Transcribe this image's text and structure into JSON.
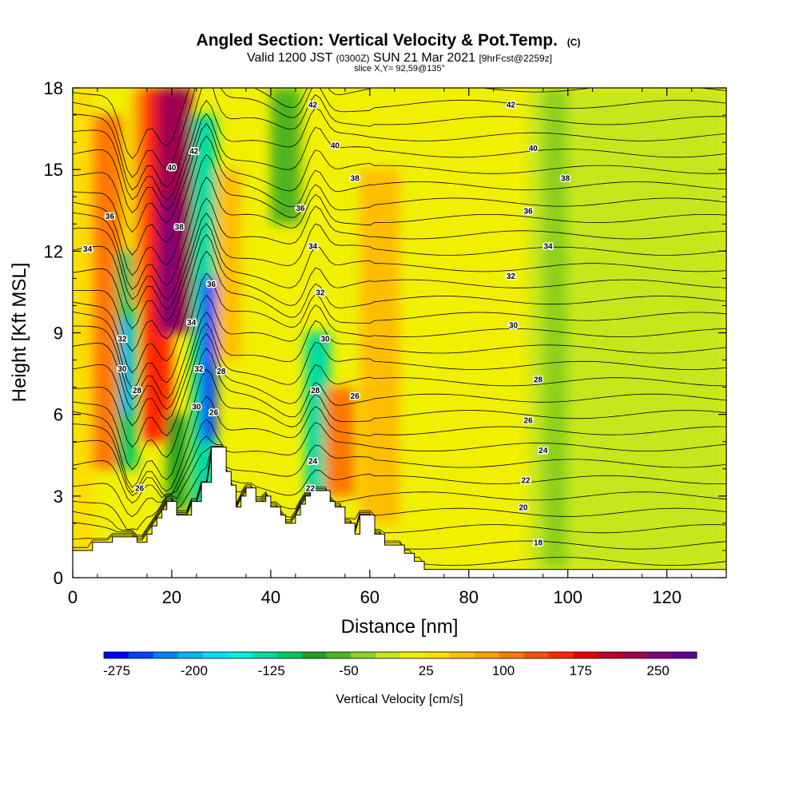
{
  "header": {
    "title": "Angled Section: Vertical Velocity & Pot.Temp.",
    "copyright": "(C)",
    "valid_prefix": "Valid 1200 JST",
    "valid_utc": "(0300Z)",
    "valid_date": "SUN 21 Mar 2021",
    "forecast": "[9hrFcst@2259z]",
    "slice": "slice X,Y= 92,59@135°"
  },
  "chart_data": {
    "type": "heatmap",
    "xlabel": "Distance [nm]",
    "ylabel": "Height [Kft MSL]",
    "xlim": [
      0,
      132
    ],
    "ylim": [
      0,
      18
    ],
    "x_ticks": [
      0,
      20,
      40,
      60,
      80,
      100,
      120
    ],
    "y_ticks": [
      0,
      3,
      6,
      9,
      12,
      15,
      18
    ],
    "colorbar": {
      "label": "Vertical Velocity [cm/s]",
      "tick_labels": [
        "-275",
        "-200",
        "-125",
        "-50",
        "25",
        "100",
        "175",
        "250"
      ],
      "tick_values": [
        -275,
        -200,
        -125,
        -50,
        25,
        100,
        175,
        250
      ],
      "range": [
        -287.5,
        287.5
      ],
      "colors": [
        "#0000ff",
        "#0040ff",
        "#0080ff",
        "#00b4ff",
        "#00dcff",
        "#00f0dc",
        "#00dca0",
        "#00c864",
        "#20a020",
        "#50b41e",
        "#8cd21e",
        "#c8e61e",
        "#f0f000",
        "#ffdc00",
        "#ffbe00",
        "#ffa000",
        "#ff7800",
        "#ff5000",
        "#ff2800",
        "#e60000",
        "#c00028",
        "#a00050",
        "#800078",
        "#600096"
      ]
    },
    "vertical_velocity_cells": [
      {
        "x0": 0,
        "x1": 4,
        "y0": 0,
        "y1": 18,
        "value": 40
      },
      {
        "x0": 4,
        "x1": 10,
        "y0": 4,
        "y1": 17,
        "value": 110
      },
      {
        "x0": 9,
        "x1": 13,
        "y0": 4,
        "y1": 12,
        "value": -100
      },
      {
        "x0": 10,
        "x1": 12,
        "y0": 6,
        "y1": 9.5,
        "value": -210
      },
      {
        "x0": 12,
        "x1": 16,
        "y0": 10,
        "y1": 18,
        "value": 90
      },
      {
        "x0": 14,
        "x1": 20,
        "y0": 5,
        "y1": 18,
        "value": 160
      },
      {
        "x0": 17,
        "x1": 24,
        "y0": 9,
        "y1": 18,
        "value": 220
      },
      {
        "x0": 18,
        "x1": 21,
        "y0": 9,
        "y1": 14,
        "value": 260
      },
      {
        "x0": 19,
        "x1": 23,
        "y0": 2.5,
        "y1": 6,
        "value": -90
      },
      {
        "x0": 24,
        "x1": 29,
        "y0": 2.5,
        "y1": 17,
        "value": -130
      },
      {
        "x0": 26,
        "x1": 29,
        "y0": 5,
        "y1": 11,
        "value": -260
      },
      {
        "x0": 29,
        "x1": 34,
        "y0": 8,
        "y1": 15,
        "value": 60
      },
      {
        "x0": 40,
        "x1": 46,
        "y0": 13,
        "y1": 18,
        "value": -60
      },
      {
        "x0": 47,
        "x1": 52,
        "y0": 3,
        "y1": 9,
        "value": -140
      },
      {
        "x0": 51,
        "x1": 57,
        "y0": 3,
        "y1": 7,
        "value": 110
      },
      {
        "x0": 58,
        "x1": 66,
        "y0": 2,
        "y1": 15,
        "value": 60
      },
      {
        "x0": 92,
        "x1": 132,
        "y0": 0.3,
        "y1": 18,
        "value": -20
      },
      {
        "x0": 95,
        "x1": 100,
        "y0": 0.3,
        "y1": 18,
        "value": -45
      }
    ],
    "theta_contours": {
      "levels": [
        18,
        20,
        22,
        24,
        26,
        28,
        30,
        32,
        34,
        36,
        38,
        40,
        42
      ],
      "labels": [
        {
          "text": "42",
          "x": 48.5,
          "y": 17.4
        },
        {
          "text": "42",
          "x": 88.5,
          "y": 17.4
        },
        {
          "text": "42",
          "x": 24.5,
          "y": 15.7
        },
        {
          "text": "40",
          "x": 20.0,
          "y": 15.1
        },
        {
          "text": "40",
          "x": 53.0,
          "y": 15.9
        },
        {
          "text": "40",
          "x": 93.0,
          "y": 15.8
        },
        {
          "text": "38",
          "x": 57.0,
          "y": 14.7
        },
        {
          "text": "38",
          "x": 99.5,
          "y": 14.7
        },
        {
          "text": "38",
          "x": 21.5,
          "y": 12.9
        },
        {
          "text": "36",
          "x": 7.5,
          "y": 13.3
        },
        {
          "text": "36",
          "x": 46.0,
          "y": 13.6
        },
        {
          "text": "36",
          "x": 92.0,
          "y": 13.5
        },
        {
          "text": "36",
          "x": 28.0,
          "y": 10.8
        },
        {
          "text": "34",
          "x": 3.0,
          "y": 12.1
        },
        {
          "text": "34",
          "x": 48.5,
          "y": 12.2
        },
        {
          "text": "34",
          "x": 96.0,
          "y": 12.2
        },
        {
          "text": "34",
          "x": 24.0,
          "y": 9.4
        },
        {
          "text": "32",
          "x": 50.0,
          "y": 10.5
        },
        {
          "text": "32",
          "x": 88.5,
          "y": 11.1
        },
        {
          "text": "32",
          "x": 10.0,
          "y": 8.8
        },
        {
          "text": "32",
          "x": 25.5,
          "y": 7.7
        },
        {
          "text": "30",
          "x": 51.0,
          "y": 8.8
        },
        {
          "text": "30",
          "x": 89.0,
          "y": 9.3
        },
        {
          "text": "30",
          "x": 10.0,
          "y": 7.7
        },
        {
          "text": "30",
          "x": 25.0,
          "y": 6.3
        },
        {
          "text": "28",
          "x": 30.0,
          "y": 7.6
        },
        {
          "text": "28",
          "x": 13.0,
          "y": 6.9
        },
        {
          "text": "28",
          "x": 49.0,
          "y": 6.9
        },
        {
          "text": "28",
          "x": 94.0,
          "y": 7.3
        },
        {
          "text": "26",
          "x": 57.0,
          "y": 6.7
        },
        {
          "text": "26",
          "x": 92.0,
          "y": 5.8
        },
        {
          "text": "26",
          "x": 13.5,
          "y": 3.3
        },
        {
          "text": "26",
          "x": 28.5,
          "y": 6.1
        },
        {
          "text": "24",
          "x": 48.5,
          "y": 4.3
        },
        {
          "text": "24",
          "x": 95.0,
          "y": 4.7
        },
        {
          "text": "22",
          "x": 48.0,
          "y": 3.3
        },
        {
          "text": "22",
          "x": 91.5,
          "y": 3.6
        },
        {
          "text": "20",
          "x": 91.0,
          "y": 2.6
        },
        {
          "text": "18",
          "x": 94.0,
          "y": 1.3
        }
      ]
    },
    "terrain_profile": [
      [
        0,
        1.0
      ],
      [
        4,
        1.0
      ],
      [
        4,
        1.3
      ],
      [
        8,
        1.3
      ],
      [
        8,
        1.5
      ],
      [
        13,
        1.5
      ],
      [
        13,
        1.3
      ],
      [
        15,
        1.3
      ],
      [
        15,
        1.6
      ],
      [
        16,
        1.6
      ],
      [
        16,
        1.9
      ],
      [
        17,
        1.9
      ],
      [
        17,
        2.2
      ],
      [
        18,
        2.2
      ],
      [
        18,
        2.5
      ],
      [
        19,
        2.5
      ],
      [
        19,
        2.8
      ],
      [
        21,
        2.8
      ],
      [
        21,
        2.3
      ],
      [
        24,
        2.3
      ],
      [
        24,
        2.8
      ],
      [
        26,
        2.8
      ],
      [
        26,
        3.5
      ],
      [
        28,
        3.5
      ],
      [
        28,
        4.8
      ],
      [
        31,
        4.8
      ],
      [
        31,
        3.9
      ],
      [
        32,
        3.9
      ],
      [
        32,
        3.4
      ],
      [
        33,
        3.4
      ],
      [
        33,
        2.6
      ],
      [
        34,
        2.6
      ],
      [
        34,
        3.0
      ],
      [
        35,
        3.0
      ],
      [
        35,
        3.3
      ],
      [
        37,
        3.3
      ],
      [
        37,
        2.8
      ],
      [
        39,
        2.8
      ],
      [
        39,
        3.0
      ],
      [
        40,
        3.0
      ],
      [
        40,
        2.6
      ],
      [
        42,
        2.6
      ],
      [
        42,
        2.3
      ],
      [
        43,
        2.3
      ],
      [
        43,
        2.0
      ],
      [
        45,
        2.0
      ],
      [
        45,
        2.3
      ],
      [
        46,
        2.3
      ],
      [
        46,
        2.7
      ],
      [
        47,
        2.7
      ],
      [
        47,
        3.0
      ],
      [
        48,
        3.0
      ],
      [
        48,
        3.2
      ],
      [
        52,
        3.2
      ],
      [
        52,
        2.8
      ],
      [
        53,
        2.8
      ],
      [
        53,
        2.6
      ],
      [
        55,
        2.6
      ],
      [
        55,
        2.0
      ],
      [
        57,
        2.0
      ],
      [
        57,
        1.6
      ],
      [
        58,
        1.6
      ],
      [
        58,
        2.3
      ],
      [
        61,
        2.3
      ],
      [
        61,
        1.6
      ],
      [
        63,
        1.6
      ],
      [
        63,
        1.2
      ],
      [
        67,
        1.2
      ],
      [
        67,
        0.9
      ],
      [
        69,
        0.9
      ],
      [
        69,
        0.6
      ],
      [
        71,
        0.6
      ],
      [
        71,
        0.3
      ],
      [
        132,
        0.3
      ]
    ]
  }
}
